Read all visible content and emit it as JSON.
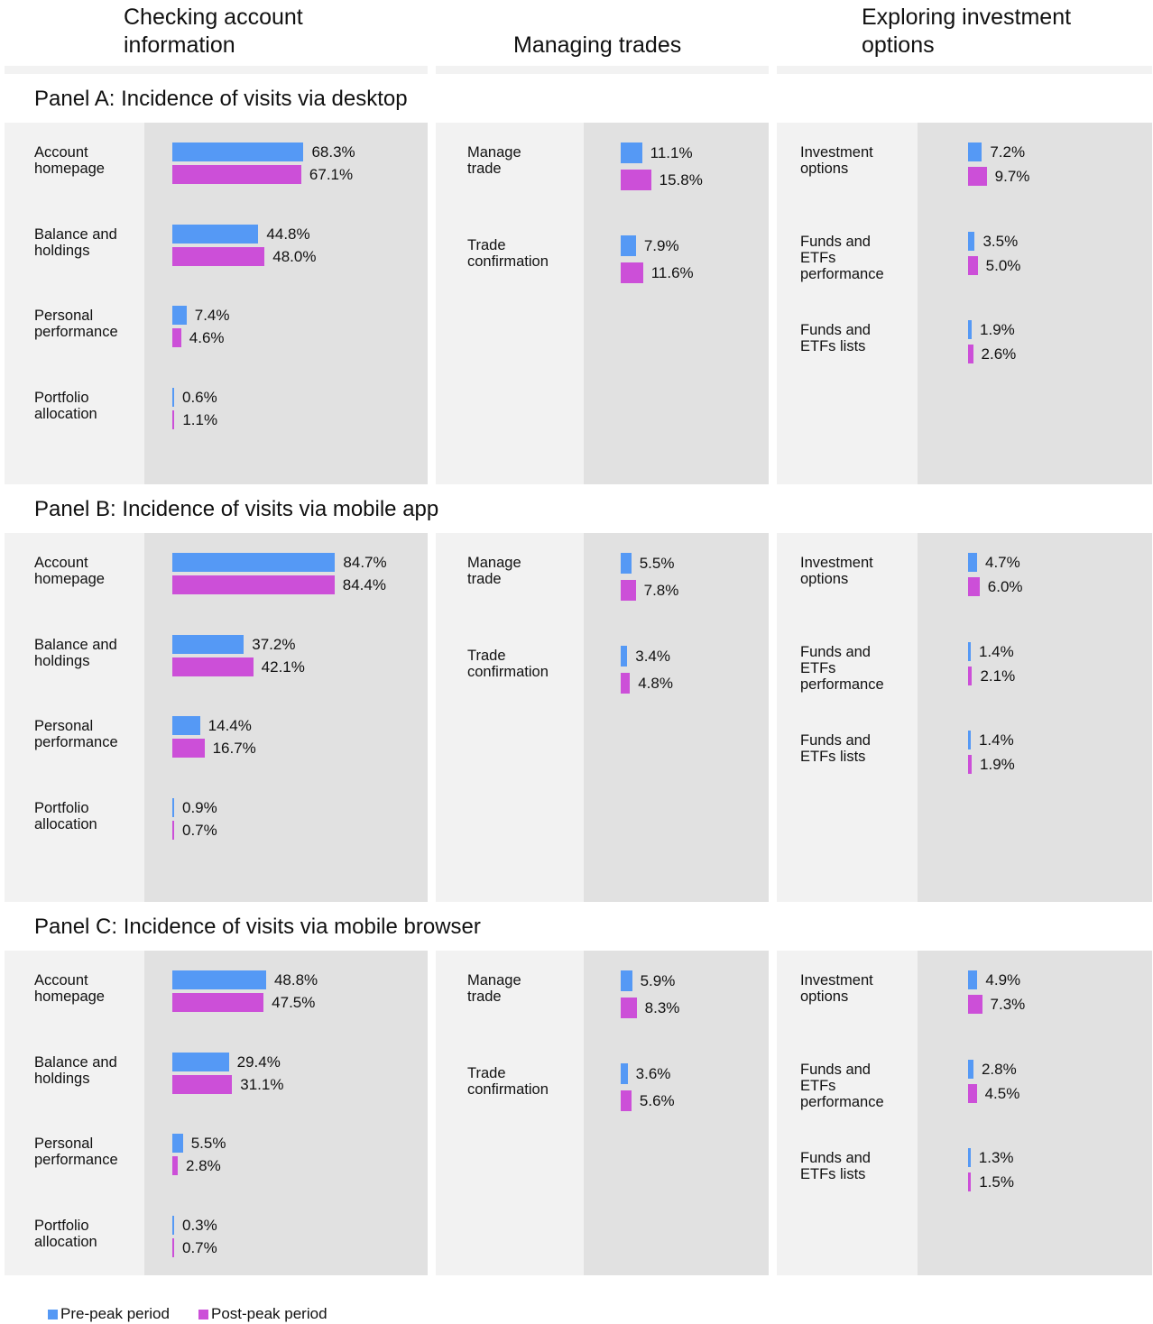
{
  "chart_data": {
    "type": "bar",
    "orientation": "horizontal",
    "column_titles": [
      "Checking account information",
      "Managing trades",
      "Exploring investment options"
    ],
    "series": [
      {
        "name": "Pre-peak period",
        "color": "#5599f5"
      },
      {
        "name": "Post-peak period",
        "color": "#cc4fd8"
      }
    ],
    "panels": [
      {
        "title": "Panel A: Incidence of visits via desktop",
        "charts": [
          {
            "categories": [
              "Account homepage",
              "Balance and holdings",
              "Personal performance",
              "Portfolio allocation"
            ],
            "series": [
              {
                "values": [
                  68.3,
                  44.8,
                  7.4,
                  0.6
                ],
                "value_labels": [
                  "68.3%",
                  "44.8%",
                  "7.4%",
                  "0.6%"
                ]
              },
              {
                "values": [
                  67.1,
                  48.0,
                  4.6,
                  1.1
                ],
                "value_labels": [
                  "67.1%",
                  "48.0%",
                  "4.6%",
                  "1.1%"
                ]
              }
            ]
          },
          {
            "categories": [
              "Manage trade",
              "Trade confirmation"
            ],
            "series": [
              {
                "values": [
                  11.1,
                  7.9
                ],
                "value_labels": [
                  "11.1%",
                  "7.9%"
                ]
              },
              {
                "values": [
                  15.8,
                  11.6
                ],
                "value_labels": [
                  "15.8%",
                  "11.6%"
                ]
              }
            ]
          },
          {
            "categories": [
              "Investment options",
              "Funds and ETFs performance",
              "Funds and ETFs lists"
            ],
            "series": [
              {
                "values": [
                  7.2,
                  3.5,
                  1.9
                ],
                "value_labels": [
                  "7.2%",
                  "3.5%",
                  "1.9%"
                ]
              },
              {
                "values": [
                  9.7,
                  5.0,
                  2.6
                ],
                "value_labels": [
                  "9.7%",
                  "5.0%",
                  "2.6%"
                ]
              }
            ]
          }
        ]
      },
      {
        "title": "Panel B: Incidence of visits via mobile app",
        "charts": [
          {
            "categories": [
              "Account homepage",
              "Balance and holdings",
              "Personal performance",
              "Portfolio allocation"
            ],
            "series": [
              {
                "values": [
                  84.7,
                  37.2,
                  14.4,
                  0.9
                ],
                "value_labels": [
                  "84.7%",
                  "37.2%",
                  "14.4%",
                  "0.9%"
                ]
              },
              {
                "values": [
                  84.4,
                  42.1,
                  16.7,
                  0.7
                ],
                "value_labels": [
                  "84.4%",
                  "42.1%",
                  "16.7%",
                  "0.7%"
                ]
              }
            ]
          },
          {
            "categories": [
              "Manage trade",
              "Trade confirmation"
            ],
            "series": [
              {
                "values": [
                  5.5,
                  3.4
                ],
                "value_labels": [
                  "5.5%",
                  "3.4%"
                ]
              },
              {
                "values": [
                  7.8,
                  4.8
                ],
                "value_labels": [
                  "7.8%",
                  "4.8%"
                ]
              }
            ]
          },
          {
            "categories": [
              "Investment options",
              "Funds and ETFs performance",
              "Funds and ETFs lists"
            ],
            "series": [
              {
                "values": [
                  4.7,
                  1.4,
                  1.4
                ],
                "value_labels": [
                  "4.7%",
                  "1.4%",
                  "1.4%"
                ]
              },
              {
                "values": [
                  6.0,
                  2.1,
                  1.9
                ],
                "value_labels": [
                  "6.0%",
                  "2.1%",
                  "1.9%"
                ]
              }
            ]
          }
        ]
      },
      {
        "title": "Panel C: Incidence of visits via mobile browser",
        "charts": [
          {
            "categories": [
              "Account homepage",
              "Balance and holdings",
              "Personal performance",
              "Portfolio allocation"
            ],
            "series": [
              {
                "values": [
                  48.8,
                  29.4,
                  5.5,
                  0.3
                ],
                "value_labels": [
                  "48.8%",
                  "29.4%",
                  "5.5%",
                  "0.3%"
                ]
              },
              {
                "values": [
                  47.5,
                  31.1,
                  2.8,
                  0.7
                ],
                "value_labels": [
                  "47.5%",
                  "31.1%",
                  "2.8%",
                  "0.7%"
                ]
              }
            ]
          },
          {
            "categories": [
              "Manage trade",
              "Trade confirmation"
            ],
            "series": [
              {
                "values": [
                  5.9,
                  3.6
                ],
                "value_labels": [
                  "5.9%",
                  "3.6%"
                ]
              },
              {
                "values": [
                  8.3,
                  5.6
                ],
                "value_labels": [
                  "8.3%",
                  "5.6%"
                ]
              }
            ]
          },
          {
            "categories": [
              "Investment options",
              "Funds and ETFs performance",
              "Funds and ETFs lists"
            ],
            "series": [
              {
                "values": [
                  4.9,
                  2.8,
                  1.3
                ],
                "value_labels": [
                  "4.9%",
                  "2.8%",
                  "1.3%"
                ]
              },
              {
                "values": [
                  7.3,
                  4.5,
                  1.5
                ],
                "value_labels": [
                  "7.3%",
                  "4.5%",
                  "1.5%"
                ]
              }
            ]
          }
        ]
      }
    ]
  }
}
